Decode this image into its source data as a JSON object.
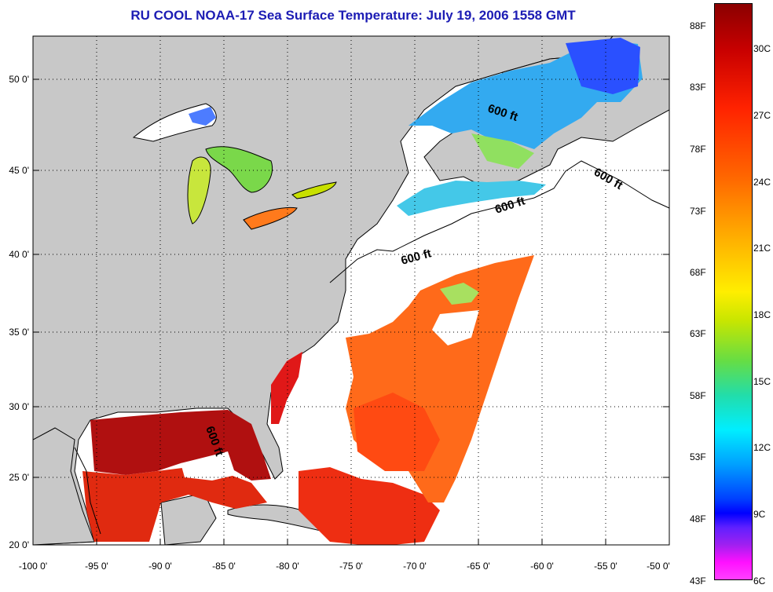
{
  "title": "RU COOL  NOAA-17  Sea Surface Temperature:  July 19, 2006 1558 GMT",
  "map": {
    "lon_ticks": [
      "-100 0'",
      "-95 0'",
      "-90 0'",
      "-85 0'",
      "-80 0'",
      "-75 0'",
      "-70 0'",
      "-65 0'",
      "-60 0'",
      "-55 0'",
      "-50 0'"
    ],
    "lat_ticks": [
      "50 0'",
      "45 0'",
      "40 0'",
      "35 0'",
      "30 0'",
      "25 0'",
      "20 0'"
    ],
    "isobath_label": "600 ft",
    "colors": {
      "land": "#c8c8c8",
      "ocean_no_data": "#ffffff"
    }
  },
  "colorbar": {
    "fahrenheit": [
      "88F",
      "83F",
      "78F",
      "73F",
      "68F",
      "63F",
      "58F",
      "53F",
      "48F",
      "43F"
    ],
    "celsius": [
      "30C",
      "27C",
      "24C",
      "21C",
      "18C",
      "15C",
      "12C",
      "9C",
      "6C"
    ]
  }
}
